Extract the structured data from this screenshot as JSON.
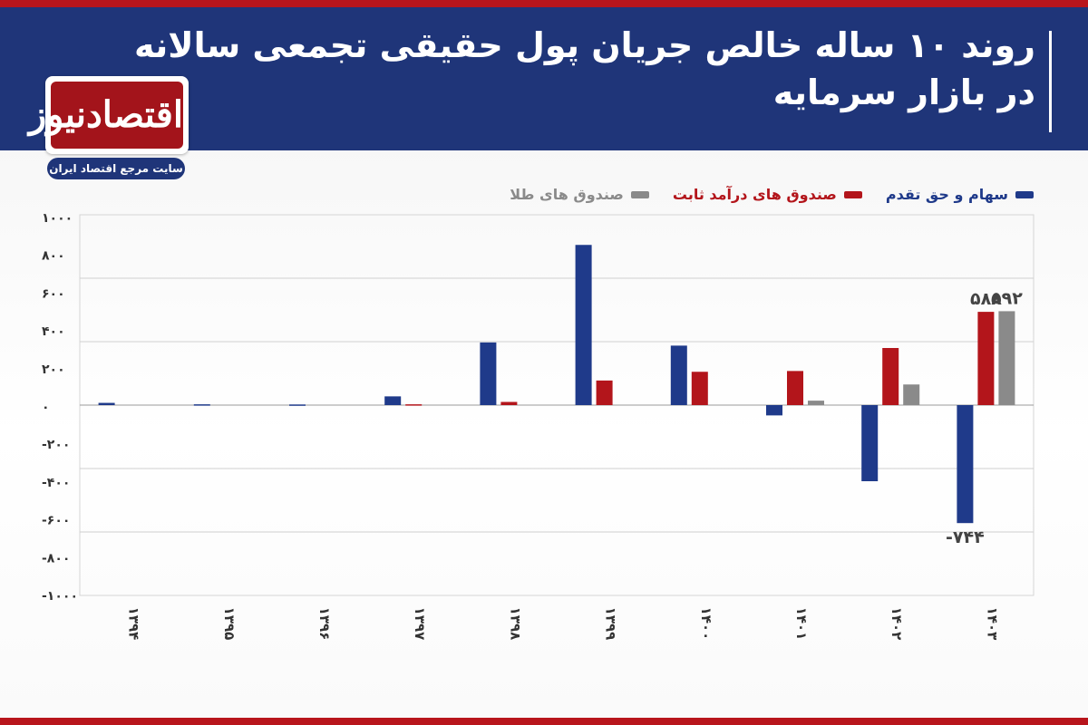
{
  "header": {
    "title_line1": "روند ۱۰ ساله خالص جریان پول حقیقی تجمعی سالانه",
    "title_line2": "در بازار سرمایه"
  },
  "logo": {
    "name": "اقتصادنیوز",
    "subtitle": "سایت مرجع اقتصاد ایران"
  },
  "colors": {
    "header_bg": "#1f3579",
    "accent_red": "#b8151c",
    "stocks": "#1f3a8a",
    "fixed_income": "#b3151b",
    "gold": "#8a8a8a"
  },
  "chart_data": {
    "type": "bar",
    "categories": [
      "1394",
      "1395",
      "1396",
      "1397",
      "1398",
      "1399",
      "1400",
      "1401",
      "1402",
      "1403"
    ],
    "series": [
      {
        "name": "سهام و حق تقدم",
        "color": "#1f3a8a",
        "values": [
          14,
          5,
          4,
          55,
          395,
          1010,
          375,
          -65,
          -480,
          -744
        ]
      },
      {
        "name": "صندوق های درآمد ثابت",
        "color": "#b3151b",
        "values": [
          0,
          0,
          0,
          5,
          20,
          155,
          210,
          215,
          360,
          588
        ]
      },
      {
        "name": "صندوق های طلا",
        "color": "#8a8a8a",
        "values": [
          0,
          0,
          0,
          0,
          0,
          0,
          0,
          28,
          130,
          592
        ]
      }
    ],
    "ytick_labels": [
      "1000",
      "800",
      "600",
      "400",
      "200",
      "0",
      "-200",
      "-400",
      "-600",
      "-800",
      "-1000"
    ],
    "ylim": [
      -1200,
      1200
    ],
    "grid": true,
    "legend_position": "top-right",
    "annotations": [
      {
        "category": "1403",
        "series": 0,
        "text": "-744"
      },
      {
        "category": "1403",
        "series": 1,
        "text": "588"
      },
      {
        "category": "1403",
        "series": 2,
        "text": "592"
      }
    ]
  }
}
